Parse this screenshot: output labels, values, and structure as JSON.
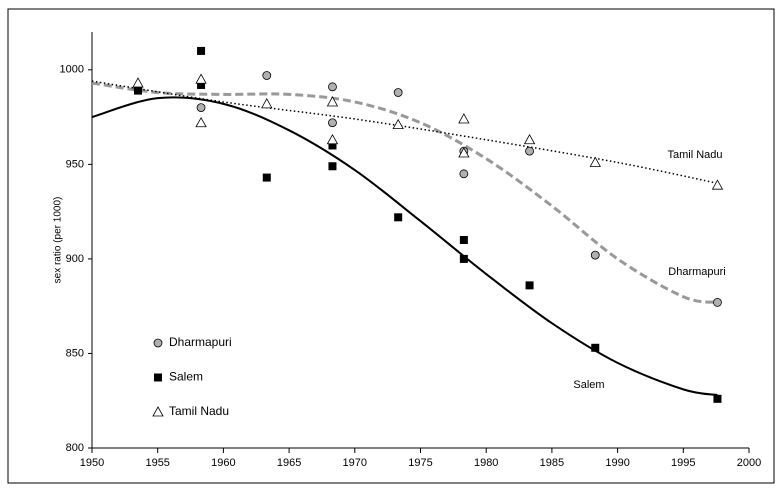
{
  "chart_data": {
    "type": "scatter",
    "y_label": "sex ratio (per 1000)",
    "xlim": [
      1950,
      2000
    ],
    "xticks": [
      1950,
      1955,
      1960,
      1965,
      1970,
      1975,
      1980,
      1985,
      1990,
      1995,
      2000
    ],
    "ylim": [
      800,
      1020
    ],
    "yticks": [
      800,
      850,
      900,
      950,
      1000
    ],
    "legend": "bottom-left",
    "series": [
      {
        "name": "Dharmapuri",
        "marker": "circle",
        "color": "#b0b0b0",
        "x": [
          1953.5,
          1958.3,
          1963.3,
          1968.3,
          1968.3,
          1973.3,
          1978.3,
          1978.3,
          1983.3,
          1988.3,
          1997.6
        ],
        "values": [
          990,
          980,
          997,
          991,
          972,
          988,
          957,
          945,
          957,
          902,
          877
        ],
        "trend_label": "Dharmapuri",
        "trend_style": "dashed",
        "trend_color": "#999999",
        "trend_x": [
          1950,
          1955,
          1960,
          1965,
          1970,
          1975,
          1980,
          1985,
          1990,
          1995,
          1997.6
        ],
        "trend_values": [
          993,
          988,
          987,
          987,
          983,
          972,
          953,
          928,
          900,
          880,
          877
        ]
      },
      {
        "name": "Salem",
        "marker": "square",
        "color": "#000000",
        "x": [
          1953.5,
          1958.3,
          1958.3,
          1963.3,
          1968.3,
          1968.3,
          1973.3,
          1978.3,
          1978.3,
          1983.3,
          1988.3,
          1997.6
        ],
        "values": [
          989,
          1010,
          992,
          943,
          960,
          949,
          922,
          910,
          900,
          886,
          853,
          826
        ],
        "trend_label": "Salem",
        "trend_style": "solid",
        "trend_color": "#000000",
        "trend_x": [
          1950,
          1955,
          1960,
          1965,
          1970,
          1975,
          1980,
          1985,
          1990,
          1995,
          1997.6
        ],
        "trend_values": [
          975,
          985,
          982,
          968,
          947,
          920,
          892,
          866,
          845,
          831,
          828
        ]
      },
      {
        "name": "Tamil Nadu",
        "marker": "triangle",
        "color": "#ffffff",
        "x": [
          1953.5,
          1958.3,
          1958.3,
          1963.3,
          1968.3,
          1968.3,
          1973.3,
          1978.3,
          1978.3,
          1983.3,
          1988.3,
          1997.6
        ],
        "values": [
          993,
          995,
          972,
          982,
          983,
          963,
          971,
          974,
          956,
          963,
          951,
          939
        ],
        "trend_label": "Tamil Nadu",
        "trend_style": "dotted",
        "trend_color": "#000000",
        "trend_x": [
          1950,
          1960,
          1970,
          1980,
          1990,
          1997.6
        ],
        "trend_values": [
          994,
          983,
          974,
          963,
          951,
          940
        ]
      }
    ]
  }
}
